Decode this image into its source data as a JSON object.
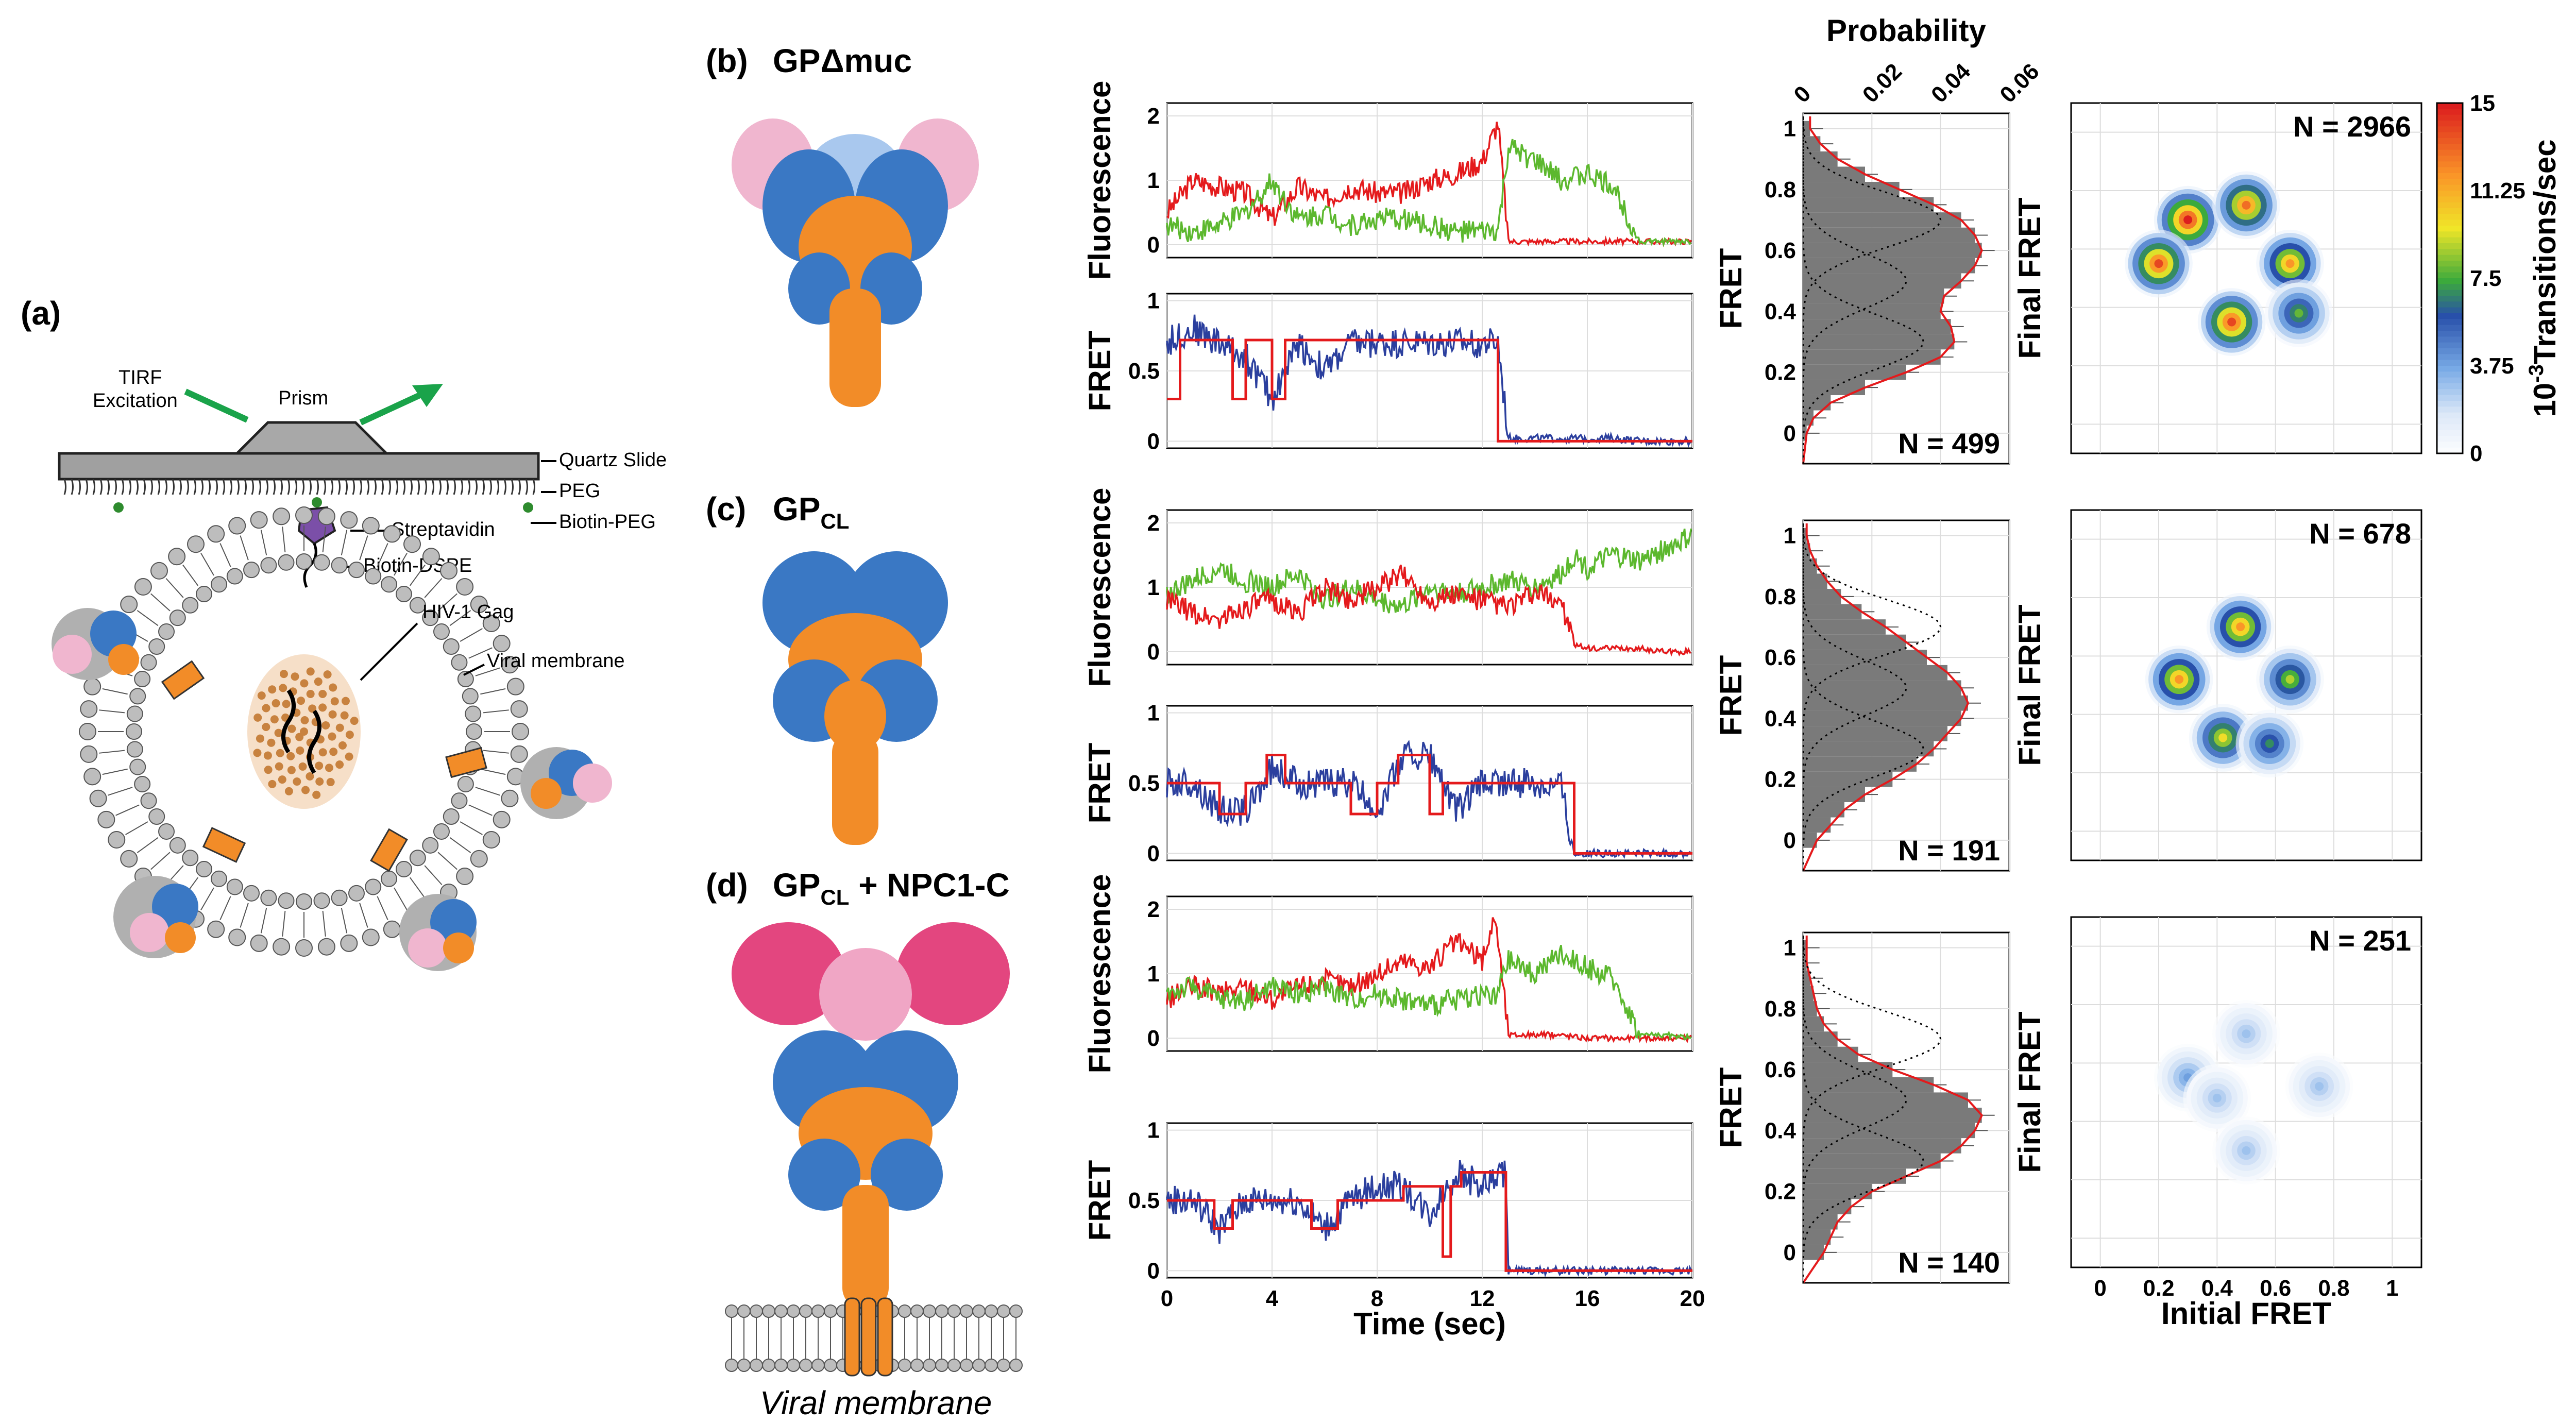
{
  "panels": {
    "a": "(a)",
    "b": "(b)",
    "c": "(c)",
    "d": "(d)"
  },
  "titles": {
    "b": "GPΔmuc",
    "c_main": "GP",
    "c_sub": "CL",
    "d_main": "GP",
    "d_sub": "CL",
    "d_rest": " + NPC1-C"
  },
  "schematic": {
    "tirf1": "TIRF",
    "tirf2": "Excitation",
    "prism": "Prism",
    "quartz": "Quartz Slide",
    "peg": "PEG",
    "biotin_peg": "Biotin-PEG",
    "streptavidin": "Streptavidin",
    "biotin_dspe": "Biotin-DSPE",
    "gag": "HIV-1 Gag",
    "membrane": "Viral membrane"
  },
  "viral_membrane_label": "Viral membrane",
  "axes": {
    "fluorescence": "Fluorescence",
    "fret": "FRET",
    "time": "Time (sec)",
    "probability": "Probability",
    "final_fret": "Final FRET",
    "initial_fret": "Initial FRET",
    "colorbar_exp": "-3",
    "colorbar_base": "10",
    "colorbar_rest": "Transitions/sec"
  },
  "ticks": {
    "fluor": [
      "0",
      "1",
      "2"
    ],
    "fret_trace": [
      "0",
      "0.5",
      "1"
    ],
    "time": [
      "0",
      "4",
      "8",
      "12",
      "16",
      "20"
    ],
    "hist_y": [
      "0",
      "0.2",
      "0.4",
      "0.6",
      "0.8",
      "1"
    ],
    "prob": [
      "0",
      "0.02",
      "0.04",
      "0.06"
    ],
    "tdp": [
      "0",
      "0.2",
      "0.4",
      "0.6",
      "0.8",
      "1"
    ],
    "colorbar": [
      "15",
      "11.25",
      "7.5",
      "3.75",
      "0"
    ]
  },
  "histogram_counts": [
    "N = 499",
    "N = 191",
    "N = 140"
  ],
  "tdp_counts": [
    "N = 2966",
    "N = 678",
    "N = 251"
  ],
  "colors": {
    "red": "#e41a1c",
    "green": "#5cb82e",
    "blue": "#2b3f9e",
    "orange": "#f28c28",
    "protein_blue": "#3a78c4",
    "pink": "#f0b6cf",
    "hotpink": "#e3467f",
    "grey_hist": "#7a7a7a"
  },
  "chart_data": [
    {
      "type": "line",
      "xlabel": "Time (sec)",
      "ylabel": "Fluorescence",
      "xlim": [
        0,
        20
      ],
      "ylim": [
        -0.2,
        2.2
      ],
      "series": [
        {
          "color": "red",
          "x": [
            0,
            1,
            2,
            3,
            4,
            5,
            6,
            7,
            8,
            9,
            10,
            11,
            12,
            12.6,
            13,
            14,
            15,
            16,
            17,
            18,
            19,
            20
          ],
          "y": [
            0.5,
            1.0,
            0.9,
            0.8,
            0.4,
            0.9,
            0.7,
            0.9,
            0.8,
            0.8,
            1.0,
            1.1,
            1.3,
            1.9,
            0.05,
            0.05,
            0.05,
            0.05,
            0.05,
            0.05,
            0.05,
            0.05
          ]
        },
        {
          "color": "green",
          "x": [
            0,
            1,
            2,
            3,
            4,
            5,
            6,
            7,
            8,
            9,
            10,
            11,
            12,
            12.6,
            13,
            14,
            15,
            16,
            17,
            18,
            19,
            20
          ],
          "y": [
            0.3,
            0.2,
            0.3,
            0.5,
            1.0,
            0.4,
            0.5,
            0.3,
            0.4,
            0.4,
            0.3,
            0.2,
            0.2,
            0.2,
            1.5,
            1.3,
            1.0,
            1.1,
            0.9,
            0.05,
            0.05,
            0.05
          ]
        }
      ]
    },
    {
      "type": "line",
      "xlabel": "Time (sec)",
      "ylabel": "FRET",
      "xlim": [
        0,
        20
      ],
      "ylim": [
        -0.05,
        1.05
      ],
      "series": [
        {
          "color": "blue",
          "x": [
            0,
            1,
            2,
            3,
            4,
            5,
            6,
            7,
            8,
            9,
            10,
            11,
            12,
            12.6,
            13,
            14,
            15,
            16,
            17,
            18,
            19,
            20
          ],
          "y": [
            0.7,
            0.8,
            0.7,
            0.6,
            0.3,
            0.7,
            0.5,
            0.7,
            0.7,
            0.7,
            0.7,
            0.7,
            0.7,
            0.7,
            0.02,
            0.02,
            0.02,
            0.02,
            0.02,
            0.0,
            0.0,
            0.0
          ]
        },
        {
          "color": "red",
          "x": [
            0,
            0.5,
            0.5,
            1.0,
            1.0,
            2.5,
            2.5,
            3.0,
            3.0,
            4.0,
            4.0,
            4.5,
            4.5,
            5.0,
            5.0,
            12.6,
            12.6,
            20
          ],
          "y": [
            0.3,
            0.3,
            0.72,
            0.72,
            0.72,
            0.72,
            0.3,
            0.3,
            0.72,
            0.72,
            0.3,
            0.3,
            0.72,
            0.72,
            0.72,
            0.72,
            0.0,
            0.0
          ]
        }
      ]
    },
    {
      "type": "line",
      "xlabel": "Time (sec)",
      "ylabel": "Fluorescence",
      "xlim": [
        0,
        20
      ],
      "ylim": [
        -0.2,
        2.2
      ],
      "series": [
        {
          "color": "green",
          "x": [
            0,
            1,
            2,
            3,
            4,
            5,
            6,
            7,
            8,
            9,
            10,
            11,
            12,
            13,
            14,
            15,
            15.5,
            16,
            17,
            18,
            19,
            20
          ],
          "y": [
            0.9,
            1.1,
            1.3,
            1.1,
            1.0,
            1.2,
            0.8,
            1.0,
            0.8,
            0.7,
            1.0,
            0.9,
            1.0,
            1.1,
            1.0,
            1.2,
            1.5,
            1.3,
            1.5,
            1.4,
            1.6,
            1.8
          ]
        },
        {
          "color": "red",
          "x": [
            0,
            1,
            2,
            3,
            4,
            5,
            6,
            7,
            8,
            9,
            10,
            11,
            12,
            13,
            14,
            15,
            15.5,
            16,
            17,
            18,
            19,
            20
          ],
          "y": [
            0.8,
            0.6,
            0.5,
            0.7,
            0.8,
            0.6,
            1.0,
            0.8,
            1.0,
            1.2,
            0.8,
            0.9,
            0.8,
            0.7,
            0.9,
            0.8,
            0.1,
            0.05,
            0.05,
            0.05,
            0.0,
            0.0
          ]
        }
      ]
    },
    {
      "type": "line",
      "xlabel": "Time (sec)",
      "ylabel": "FRET",
      "xlim": [
        0,
        20
      ],
      "ylim": [
        -0.05,
        1.05
      ],
      "series": [
        {
          "color": "blue",
          "x": [
            0,
            1,
            2,
            3,
            4,
            5,
            6,
            7,
            8,
            9,
            10,
            11,
            12,
            13,
            14,
            15,
            15.5,
            16,
            17,
            18,
            19,
            20
          ],
          "y": [
            0.5,
            0.5,
            0.3,
            0.3,
            0.6,
            0.5,
            0.5,
            0.5,
            0.3,
            0.7,
            0.7,
            0.3,
            0.5,
            0.5,
            0.5,
            0.5,
            0.0,
            0.0,
            0.0,
            0.0,
            0.0,
            0.0
          ]
        },
        {
          "color": "red",
          "x": [
            0,
            2,
            2,
            3,
            3,
            3.8,
            3.8,
            4.5,
            4.5,
            6,
            6,
            7,
            7,
            8,
            8,
            8.8,
            8.8,
            10,
            10,
            10.5,
            10.5,
            11.5,
            11.5,
            15.5,
            15.5,
            20
          ],
          "y": [
            0.5,
            0.5,
            0.28,
            0.28,
            0.5,
            0.5,
            0.7,
            0.7,
            0.5,
            0.5,
            0.5,
            0.5,
            0.28,
            0.28,
            0.5,
            0.5,
            0.7,
            0.7,
            0.28,
            0.28,
            0.5,
            0.5,
            0.5,
            0.5,
            0.0,
            0.0
          ]
        }
      ]
    },
    {
      "type": "line",
      "xlabel": "Time (sec)",
      "ylabel": "Fluorescence",
      "xlim": [
        0,
        20
      ],
      "ylim": [
        -0.2,
        2.2
      ],
      "series": [
        {
          "color": "red",
          "x": [
            0,
            1,
            2,
            3,
            4,
            5,
            6,
            7,
            8,
            9,
            10,
            11,
            12,
            12.5,
            13,
            14,
            15,
            16,
            17,
            18,
            19,
            20
          ],
          "y": [
            0.6,
            0.8,
            0.7,
            0.8,
            0.6,
            0.8,
            0.9,
            0.8,
            1.0,
            1.2,
            1.1,
            1.5,
            1.2,
            1.9,
            0.05,
            0.05,
            0.05,
            0.0,
            0.0,
            0.0,
            0.0,
            0.0
          ]
        },
        {
          "color": "green",
          "x": [
            0,
            1,
            2,
            3,
            4,
            5,
            6,
            7,
            8,
            9,
            10,
            11,
            12,
            12.5,
            13,
            14,
            15,
            16,
            17,
            18,
            19,
            20
          ],
          "y": [
            0.7,
            0.8,
            0.6,
            0.6,
            0.8,
            0.7,
            0.8,
            0.6,
            0.7,
            0.6,
            0.5,
            0.6,
            0.7,
            0.6,
            1.2,
            1.0,
            1.3,
            1.1,
            0.9,
            0.05,
            0.05,
            0.0
          ]
        }
      ]
    },
    {
      "type": "line",
      "xlabel": "Time (sec)",
      "ylabel": "FRET",
      "xlim": [
        0,
        20
      ],
      "ylim": [
        -0.05,
        1.05
      ],
      "series": [
        {
          "color": "blue",
          "x": [
            0,
            1,
            2,
            3,
            4,
            5,
            6,
            7,
            8,
            9,
            10,
            11,
            12,
            12.9,
            13,
            14,
            15,
            16,
            17,
            18,
            19,
            20
          ],
          "y": [
            0.5,
            0.5,
            0.3,
            0.5,
            0.5,
            0.5,
            0.3,
            0.5,
            0.6,
            0.6,
            0.4,
            0.7,
            0.6,
            0.7,
            0.0,
            0.0,
            0.0,
            0.0,
            0.0,
            0.0,
            0.0,
            0.0
          ]
        },
        {
          "color": "red",
          "x": [
            0,
            1.8,
            1.8,
            2.5,
            2.5,
            5.5,
            5.5,
            6.5,
            6.5,
            9,
            9,
            10.5,
            10.5,
            10.8,
            10.8,
            11.2,
            11.2,
            12.9,
            12.9,
            20
          ],
          "y": [
            0.5,
            0.5,
            0.3,
            0.3,
            0.5,
            0.5,
            0.3,
            0.3,
            0.5,
            0.5,
            0.6,
            0.6,
            0.1,
            0.1,
            0.6,
            0.6,
            0.7,
            0.7,
            0.0,
            0.0
          ]
        }
      ]
    },
    {
      "type": "bar",
      "xlabel": "Probability",
      "ylabel": "FRET",
      "xlim": [
        0,
        0.06
      ],
      "ylim": [
        -0.1,
        1.05
      ],
      "count": "N = 499",
      "bins": [
        0.0,
        0.05,
        0.1,
        0.15,
        0.2,
        0.25,
        0.3,
        0.35,
        0.4,
        0.45,
        0.5,
        0.55,
        0.6,
        0.65,
        0.7,
        0.75,
        0.8,
        0.85,
        0.9,
        0.95,
        1.0
      ],
      "values": [
        0.001,
        0.003,
        0.008,
        0.018,
        0.03,
        0.04,
        0.044,
        0.043,
        0.04,
        0.041,
        0.046,
        0.05,
        0.052,
        0.05,
        0.046,
        0.038,
        0.028,
        0.018,
        0.01,
        0.005,
        0.002
      ]
    },
    {
      "type": "bar",
      "xlabel": "Probability",
      "ylabel": "FRET",
      "xlim": [
        0,
        0.06
      ],
      "ylim": [
        -0.1,
        1.05
      ],
      "count": "N = 191",
      "bins": [
        0.0,
        0.05,
        0.1,
        0.15,
        0.2,
        0.25,
        0.3,
        0.35,
        0.4,
        0.45,
        0.5,
        0.55,
        0.6,
        0.65,
        0.7,
        0.75,
        0.8,
        0.85,
        0.9,
        0.95,
        1.0
      ],
      "values": [
        0.004,
        0.008,
        0.012,
        0.018,
        0.026,
        0.033,
        0.038,
        0.042,
        0.046,
        0.048,
        0.046,
        0.042,
        0.036,
        0.03,
        0.024,
        0.017,
        0.011,
        0.007,
        0.004,
        0.002,
        0.001
      ]
    },
    {
      "type": "bar",
      "xlabel": "Probability",
      "ylabel": "FRET",
      "xlim": [
        0,
        0.06
      ],
      "ylim": [
        -0.1,
        1.05
      ],
      "count": "N = 140",
      "bins": [
        0.0,
        0.05,
        0.1,
        0.15,
        0.2,
        0.25,
        0.3,
        0.35,
        0.4,
        0.45,
        0.5,
        0.55,
        0.6,
        0.65,
        0.7,
        0.75,
        0.8,
        0.85,
        0.9,
        0.95,
        1.0
      ],
      "values": [
        0.006,
        0.008,
        0.01,
        0.014,
        0.02,
        0.03,
        0.04,
        0.046,
        0.05,
        0.052,
        0.048,
        0.038,
        0.026,
        0.016,
        0.01,
        0.006,
        0.004,
        0.003,
        0.002,
        0.001,
        0.001
      ]
    },
    {
      "type": "heatmap",
      "xlabel": "Initial FRET",
      "ylabel": "Final FRET",
      "xlim": [
        -0.1,
        1.1
      ],
      "ylim": [
        -0.1,
        1.1
      ],
      "count": "N = 2966",
      "peaks": [
        [
          0.3,
          0.7,
          15
        ],
        [
          0.5,
          0.75,
          13
        ],
        [
          0.2,
          0.55,
          14
        ],
        [
          0.65,
          0.55,
          12
        ],
        [
          0.45,
          0.35,
          14
        ],
        [
          0.68,
          0.38,
          8
        ]
      ]
    },
    {
      "type": "heatmap",
      "xlabel": "Initial FRET",
      "ylabel": "Final FRET",
      "xlim": [
        -0.1,
        1.1
      ],
      "ylim": [
        -0.1,
        1.1
      ],
      "count": "N = 678",
      "peaks": [
        [
          0.48,
          0.7,
          12
        ],
        [
          0.27,
          0.52,
          12
        ],
        [
          0.65,
          0.52,
          9
        ],
        [
          0.42,
          0.32,
          10
        ],
        [
          0.58,
          0.3,
          7
        ]
      ]
    },
    {
      "type": "heatmap",
      "xlabel": "Initial FRET",
      "ylabel": "Final FRET",
      "xlim": [
        -0.1,
        1.1
      ],
      "ylim": [
        -0.1,
        1.1
      ],
      "count": "N = 251",
      "peaks": [
        [
          0.5,
          0.7,
          3
        ],
        [
          0.3,
          0.55,
          4
        ],
        [
          0.75,
          0.52,
          3
        ],
        [
          0.4,
          0.48,
          3
        ],
        [
          0.5,
          0.3,
          3
        ]
      ]
    }
  ]
}
